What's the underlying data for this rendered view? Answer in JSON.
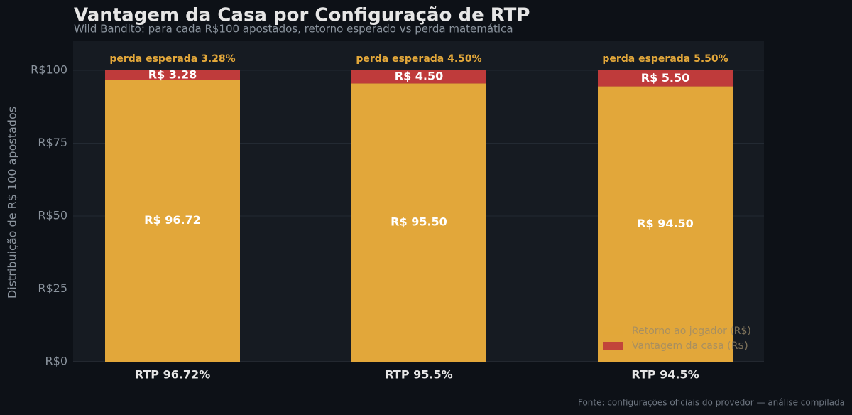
{
  "chart_data": {
    "type": "stacked_bar",
    "title": "Vantagem da Casa por Configuração de RTP",
    "subtitle": "Wild Bandito: para cada R$100 apostados, retorno esperado vs perda matemática",
    "y_label": "Distribuição de R$ 100 apostados",
    "source": "Fonte: configurações oficiais do provedor — análise compilada",
    "categories": [
      "RTP 96.72%",
      "RTP 95.5%",
      "RTP 94.5%"
    ],
    "annotations": [
      "perda esperada 3.28%",
      "perda esperada 4.50%",
      "perda esperada 5.50%"
    ],
    "series": [
      {
        "name": "Retorno ao jogador (R$)",
        "color": "#e2a73a",
        "values": [
          96.72,
          95.5,
          94.5
        ],
        "value_labels": [
          "R$ 96.72",
          "R$ 95.50",
          "R$ 94.50"
        ]
      },
      {
        "name": "Vantagem da casa (R$)",
        "color": "#bf3b3b",
        "values": [
          3.28,
          4.5,
          5.5
        ],
        "value_labels": [
          "R$ 3.28",
          "R$ 4.50",
          "R$ 5.50"
        ]
      }
    ],
    "ylim": [
      0,
      110
    ],
    "yticks": [
      {
        "value": 0,
        "label": "R$0"
      },
      {
        "value": 25,
        "label": "R$25"
      },
      {
        "value": 50,
        "label": "R$50"
      },
      {
        "value": 75,
        "label": "R$75"
      },
      {
        "value": 100,
        "label": "R$100"
      }
    ],
    "grid": true,
    "legend": "lower right"
  }
}
